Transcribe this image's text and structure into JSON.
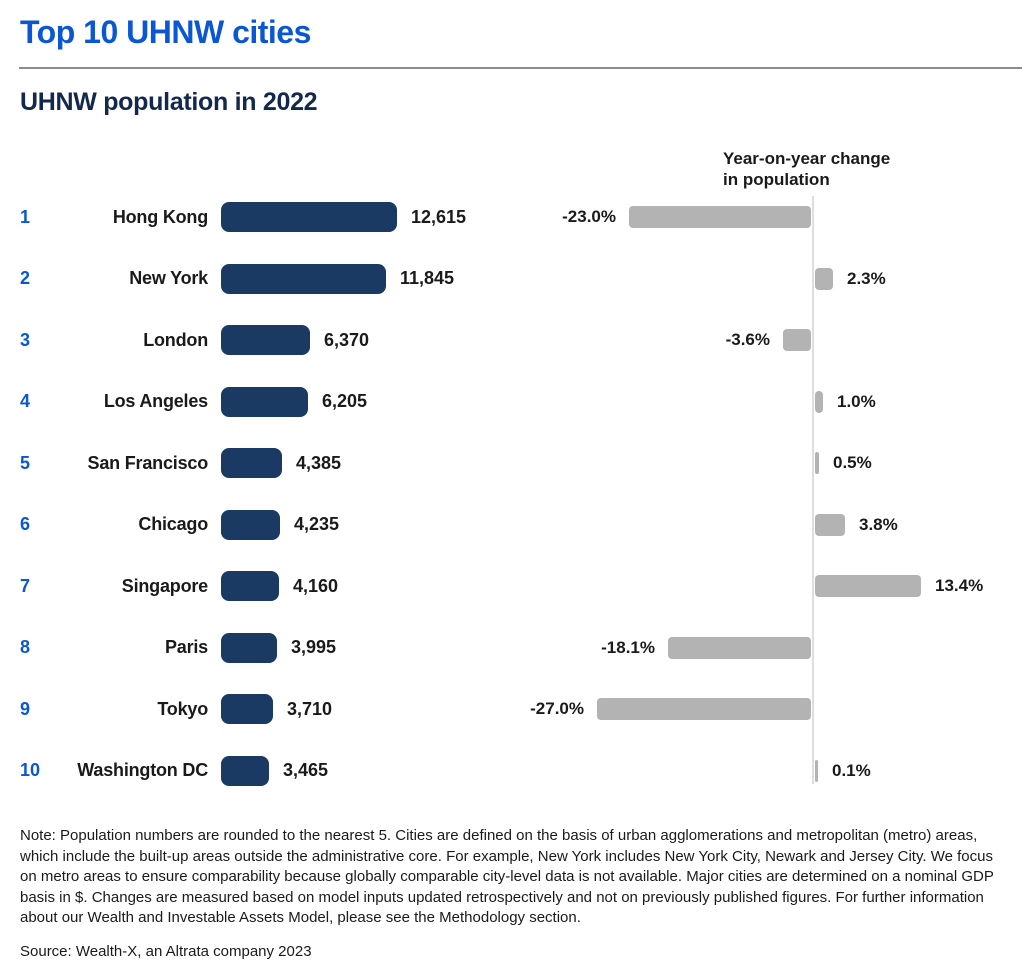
{
  "page": {
    "title": "Top 10 UHNW cities",
    "subtitle": "UHNW population in 2022",
    "change_header": "Year-on-year change\nin population",
    "note": "Note: Population numbers are rounded to the nearest 5. Cities are defined on the basis of urban agglomerations and metropolitan (metro) areas, which include the built-up areas outside the administrative core. For example, New York includes New York City, Newark and Jersey City. We focus on metro areas to ensure comparability because globally comparable city-level data is not available. Major cities are determined on a nominal GDP basis in $. Changes are measured based on model inputs updated retrospectively and not on previously published figures. For further information about our Wealth and Investable Assets Model, please see the Methodology section.",
    "source": "Source: Wealth-X, an Altrata company 2023"
  },
  "colors": {
    "title_blue": "#0b57d3",
    "rank_blue": "#0b57d3",
    "population_bar_navy": "#1b3a63",
    "subtitle_navy": "#12294d",
    "change_bar_gray": "#b3b3b3",
    "baseline_gray": "#dedede",
    "rule_gray": "#8c8c8c",
    "text_dark": "#1a1a1a"
  },
  "chart_data": {
    "type": "bar",
    "orientation": "horizontal",
    "title": "UHNW population in 2022",
    "secondary_axis_title": "Year-on-year change in population",
    "categories": [
      "Hong Kong",
      "New York",
      "London",
      "Los Angeles",
      "San Francisco",
      "Chicago",
      "Singapore",
      "Paris",
      "Tokyo",
      "Washington DC"
    ],
    "series": [
      {
        "name": "UHNW population in 2022",
        "values": [
          12615,
          11845,
          6370,
          6205,
          4385,
          4235,
          4160,
          3995,
          3710,
          3465
        ]
      },
      {
        "name": "Year-on-year change in population (%)",
        "values": [
          -23.0,
          2.3,
          -3.6,
          1.0,
          0.5,
          3.8,
          13.4,
          -18.1,
          -27.0,
          0.1
        ]
      }
    ],
    "legend_position": "none",
    "grid": false,
    "population_axis_range": [
      0,
      12615
    ],
    "change_axis_range": [
      -27.0,
      13.4
    ],
    "rows": [
      {
        "rank": "1",
        "name": "Hong Kong",
        "population": 12615,
        "population_label": "12,615",
        "change_pct": -23.0,
        "change_label": "-23.0%"
      },
      {
        "rank": "2",
        "name": "New York",
        "population": 11845,
        "population_label": "11,845",
        "change_pct": 2.3,
        "change_label": "2.3%"
      },
      {
        "rank": "3",
        "name": "London",
        "population": 6370,
        "population_label": "6,370",
        "change_pct": -3.6,
        "change_label": "-3.6%"
      },
      {
        "rank": "4",
        "name": "Los Angeles",
        "population": 6205,
        "population_label": "6,205",
        "change_pct": 1.0,
        "change_label": "1.0%"
      },
      {
        "rank": "5",
        "name": "San Francisco",
        "population": 4385,
        "population_label": "4,385",
        "change_pct": 0.5,
        "change_label": "0.5%"
      },
      {
        "rank": "6",
        "name": "Chicago",
        "population": 4235,
        "population_label": "4,235",
        "change_pct": 3.8,
        "change_label": "3.8%"
      },
      {
        "rank": "7",
        "name": "Singapore",
        "population": 4160,
        "population_label": "4,160",
        "change_pct": 13.4,
        "change_label": "13.4%"
      },
      {
        "rank": "8",
        "name": "Paris",
        "population": 3995,
        "population_label": "3,995",
        "change_pct": -18.1,
        "change_label": "-18.1%"
      },
      {
        "rank": "9",
        "name": "Tokyo",
        "population": 3710,
        "population_label": "3,710",
        "change_pct": -27.0,
        "change_label": "-27.0%"
      },
      {
        "rank": "10",
        "name": "Washington DC",
        "population": 3465,
        "population_label": "3,465",
        "change_pct": 0.1,
        "change_label": "0.1%"
      }
    ]
  }
}
